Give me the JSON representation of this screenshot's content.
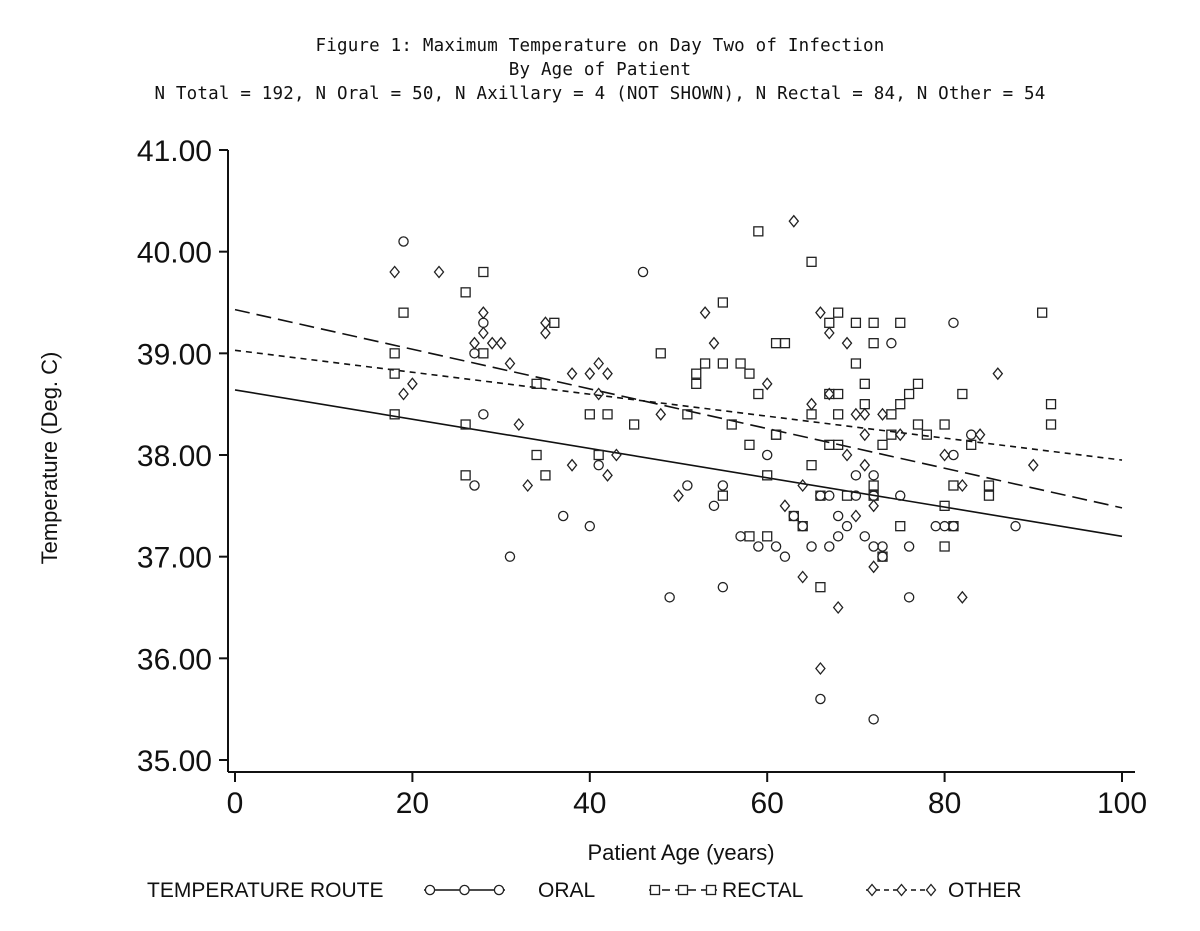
{
  "chart_data": {
    "type": "scatter",
    "title": "Figure 1: Maximum Temperature on Day Two of Infection",
    "subtitle": "By Age of Patient",
    "subtitle2": "N Total = 192, N Oral = 50, N Axillary = 4 (NOT SHOWN), N Rectal = 84, N Other = 54",
    "xlabel": "Patient Age (years)",
    "ylabel": "Temperature (Deg. C)",
    "xlim": [
      0,
      100
    ],
    "ylim": [
      35,
      41
    ],
    "xticks": [
      0,
      20,
      40,
      60,
      80,
      100
    ],
    "xtick_labels": [
      "0",
      "20",
      "40",
      "60",
      "80",
      "100"
    ],
    "yticks": [
      35,
      36,
      37,
      38,
      39,
      40,
      41
    ],
    "ytick_labels": [
      "35.00",
      "36.00",
      "37.00",
      "38.00",
      "39.00",
      "40.00",
      "41.00"
    ],
    "grid": false,
    "legend_title": "TEMPERATURE ROUTE",
    "series": [
      {
        "name": "ORAL",
        "marker": "circle",
        "line_style": "solid",
        "fit": [
          [
            0,
            38.64
          ],
          [
            100,
            37.2
          ]
        ],
        "points": [
          [
            19,
            40.1
          ],
          [
            28,
            39.3
          ],
          [
            27,
            39.0
          ],
          [
            27,
            37.7
          ],
          [
            28,
            38.4
          ],
          [
            31,
            37.0
          ],
          [
            37,
            37.4
          ],
          [
            40,
            37.3
          ],
          [
            41,
            37.9
          ],
          [
            46,
            39.8
          ],
          [
            49,
            36.6
          ],
          [
            51,
            37.7
          ],
          [
            54,
            37.5
          ],
          [
            55,
            37.7
          ],
          [
            55,
            36.7
          ],
          [
            57,
            37.2
          ],
          [
            59,
            37.1
          ],
          [
            60,
            38.0
          ],
          [
            61,
            37.1
          ],
          [
            62,
            37.0
          ],
          [
            63,
            37.4
          ],
          [
            64,
            37.3
          ],
          [
            65,
            37.1
          ],
          [
            66,
            35.6
          ],
          [
            66,
            37.6
          ],
          [
            67,
            37.1
          ],
          [
            67,
            37.6
          ],
          [
            68,
            37.2
          ],
          [
            68,
            37.4
          ],
          [
            69,
            37.3
          ],
          [
            70,
            37.6
          ],
          [
            70,
            37.8
          ],
          [
            71,
            37.2
          ],
          [
            72,
            35.4
          ],
          [
            72,
            37.8
          ],
          [
            72,
            37.1
          ],
          [
            72,
            37.6
          ],
          [
            73,
            37.1
          ],
          [
            73,
            37.0
          ],
          [
            74,
            39.1
          ],
          [
            75,
            37.6
          ],
          [
            76,
            36.6
          ],
          [
            76,
            37.1
          ],
          [
            79,
            37.3
          ],
          [
            80,
            37.3
          ],
          [
            81,
            39.3
          ],
          [
            81,
            37.3
          ],
          [
            81,
            38.0
          ],
          [
            83,
            38.2
          ],
          [
            88,
            37.3
          ]
        ]
      },
      {
        "name": "RECTAL",
        "marker": "square",
        "line_style": "dashed",
        "fit": [
          [
            0,
            39.43
          ],
          [
            100,
            37.48
          ]
        ],
        "points": [
          [
            18,
            39.0
          ],
          [
            18,
            38.8
          ],
          [
            18,
            38.4
          ],
          [
            19,
            39.4
          ],
          [
            26,
            38.3
          ],
          [
            26,
            39.6
          ],
          [
            26,
            37.8
          ],
          [
            28,
            39.8
          ],
          [
            28,
            39.0
          ],
          [
            34,
            38.7
          ],
          [
            34,
            38.0
          ],
          [
            35,
            37.8
          ],
          [
            36,
            39.3
          ],
          [
            40,
            38.4
          ],
          [
            41,
            38.0
          ],
          [
            42,
            38.4
          ],
          [
            45,
            38.3
          ],
          [
            48,
            39.0
          ],
          [
            51,
            38.4
          ],
          [
            52,
            38.7
          ],
          [
            52,
            38.8
          ],
          [
            53,
            38.9
          ],
          [
            55,
            38.9
          ],
          [
            55,
            39.5
          ],
          [
            55,
            37.6
          ],
          [
            56,
            38.3
          ],
          [
            57,
            38.9
          ],
          [
            58,
            38.8
          ],
          [
            58,
            37.2
          ],
          [
            58,
            38.1
          ],
          [
            59,
            38.6
          ],
          [
            59,
            40.2
          ],
          [
            60,
            37.8
          ],
          [
            60,
            37.2
          ],
          [
            61,
            38.2
          ],
          [
            61,
            38.2
          ],
          [
            61,
            39.1
          ],
          [
            62,
            39.1
          ],
          [
            63,
            37.4
          ],
          [
            64,
            37.3
          ],
          [
            65,
            39.9
          ],
          [
            65,
            38.4
          ],
          [
            65,
            37.9
          ],
          [
            66,
            36.7
          ],
          [
            66,
            37.6
          ],
          [
            67,
            39.3
          ],
          [
            67,
            38.6
          ],
          [
            67,
            38.1
          ],
          [
            68,
            39.4
          ],
          [
            68,
            38.6
          ],
          [
            68,
            38.4
          ],
          [
            68,
            38.1
          ],
          [
            69,
            37.6
          ],
          [
            70,
            39.3
          ],
          [
            70,
            38.9
          ],
          [
            71,
            38.7
          ],
          [
            71,
            38.5
          ],
          [
            72,
            39.3
          ],
          [
            72,
            39.1
          ],
          [
            72,
            37.6
          ],
          [
            72,
            37.7
          ],
          [
            73,
            37.0
          ],
          [
            73,
            38.1
          ],
          [
            74,
            38.4
          ],
          [
            75,
            39.3
          ],
          [
            75,
            38.5
          ],
          [
            75,
            37.3
          ],
          [
            76,
            38.6
          ],
          [
            77,
            38.3
          ],
          [
            77,
            38.7
          ],
          [
            78,
            38.2
          ],
          [
            80,
            38.3
          ],
          [
            80,
            37.5
          ],
          [
            80,
            37.1
          ],
          [
            81,
            37.7
          ],
          [
            81,
            37.3
          ],
          [
            82,
            38.6
          ],
          [
            83,
            38.1
          ],
          [
            85,
            37.7
          ],
          [
            85,
            37.6
          ],
          [
            91,
            39.4
          ],
          [
            92,
            38.5
          ],
          [
            92,
            38.3
          ],
          [
            74,
            38.2
          ]
        ]
      },
      {
        "name": "OTHER",
        "marker": "diamond",
        "line_style": "short-dashed",
        "fit": [
          [
            0,
            39.03
          ],
          [
            100,
            37.95
          ]
        ],
        "points": [
          [
            18,
            39.8
          ],
          [
            19,
            38.6
          ],
          [
            20,
            38.7
          ],
          [
            23,
            39.8
          ],
          [
            27,
            39.1
          ],
          [
            28,
            39.4
          ],
          [
            28,
            39.2
          ],
          [
            29,
            39.1
          ],
          [
            30,
            39.1
          ],
          [
            31,
            38.9
          ],
          [
            32,
            38.3
          ],
          [
            33,
            37.7
          ],
          [
            35,
            39.3
          ],
          [
            35,
            39.2
          ],
          [
            38,
            38.8
          ],
          [
            38,
            37.9
          ],
          [
            40,
            38.8
          ],
          [
            41,
            38.9
          ],
          [
            41,
            38.6
          ],
          [
            42,
            38.8
          ],
          [
            42,
            37.8
          ],
          [
            43,
            38.0
          ],
          [
            48,
            38.4
          ],
          [
            50,
            37.6
          ],
          [
            53,
            39.4
          ],
          [
            54,
            39.1
          ],
          [
            60,
            38.7
          ],
          [
            62,
            37.5
          ],
          [
            63,
            40.3
          ],
          [
            64,
            36.8
          ],
          [
            64,
            37.7
          ],
          [
            65,
            38.5
          ],
          [
            66,
            35.9
          ],
          [
            66,
            39.4
          ],
          [
            67,
            39.2
          ],
          [
            67,
            38.6
          ],
          [
            68,
            36.5
          ],
          [
            69,
            39.1
          ],
          [
            69,
            38.0
          ],
          [
            70,
            37.4
          ],
          [
            70,
            38.4
          ],
          [
            71,
            38.2
          ],
          [
            71,
            37.9
          ],
          [
            71,
            38.4
          ],
          [
            72,
            37.5
          ],
          [
            72,
            36.9
          ],
          [
            73,
            38.4
          ],
          [
            75,
            38.2
          ],
          [
            80,
            38.0
          ],
          [
            82,
            37.7
          ],
          [
            82,
            36.6
          ],
          [
            84,
            38.2
          ],
          [
            86,
            38.8
          ],
          [
            90,
            37.9
          ]
        ]
      }
    ]
  }
}
